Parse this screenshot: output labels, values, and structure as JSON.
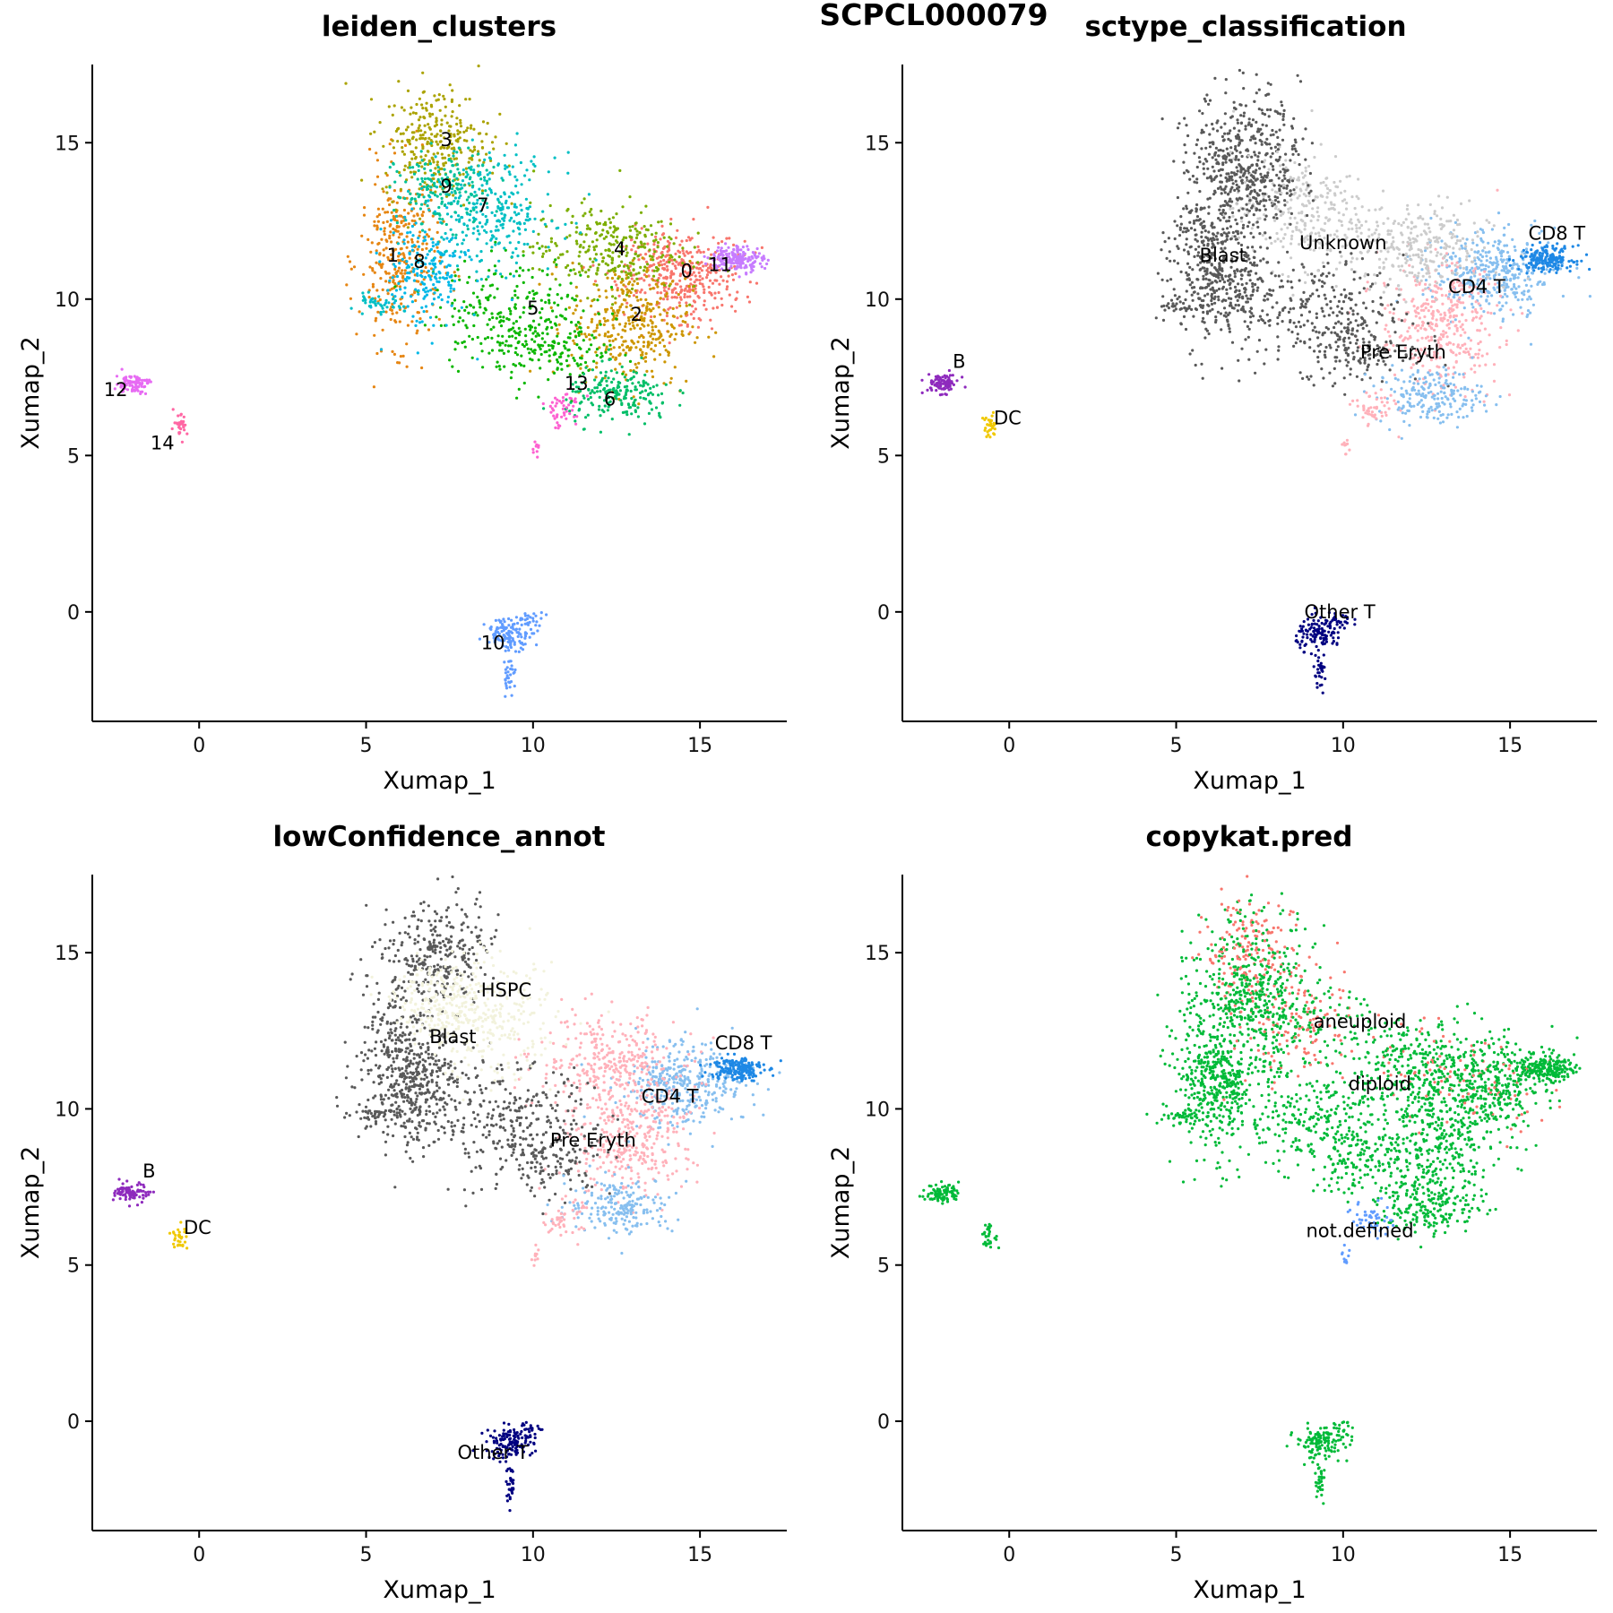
{
  "figure": {
    "title": "SCPCL000079"
  },
  "chart_data": [
    {
      "type": "scatter",
      "title": "leiden_clusters",
      "xlabel": "Xumap_1",
      "ylabel": "Xumap_2",
      "xlim": [
        -3.2,
        17.6
      ],
      "ylim": [
        -3.5,
        17.5
      ],
      "xticks": [
        0,
        5,
        10,
        15
      ],
      "yticks": [
        0,
        5,
        10,
        15
      ],
      "grid": false,
      "legend": "none",
      "groups": [
        {
          "label": "0",
          "color": "#F8766D",
          "label_x": 14.6,
          "label_y": 10.7
        },
        {
          "label": "1",
          "color": "#E68613",
          "label_x": 5.8,
          "label_y": 11.2
        },
        {
          "label": "2",
          "color": "#CD9600",
          "label_x": 13.1,
          "label_y": 9.3
        },
        {
          "label": "3",
          "color": "#ABA300",
          "label_x": 7.4,
          "label_y": 14.9
        },
        {
          "label": "4",
          "color": "#7CAE00",
          "label_x": 12.6,
          "label_y": 11.4
        },
        {
          "label": "5",
          "color": "#0CB702",
          "label_x": 10.0,
          "label_y": 9.5
        },
        {
          "label": "6",
          "color": "#00BE67",
          "label_x": 12.3,
          "label_y": 6.6
        },
        {
          "label": "7",
          "color": "#00BFC4",
          "label_x": 8.5,
          "label_y": 12.8
        },
        {
          "label": "8",
          "color": "#00B8E7",
          "label_x": 6.6,
          "label_y": 11.0
        },
        {
          "label": "9",
          "color": "#00C19A",
          "label_x": 7.4,
          "label_y": 13.4
        },
        {
          "label": "10",
          "color": "#619CFF",
          "label_x": 8.8,
          "label_y": -1.2
        },
        {
          "label": "11",
          "color": "#C77CFF",
          "label_x": 15.6,
          "label_y": 10.9
        },
        {
          "label": "12",
          "color": "#E76BF3",
          "label_x": -2.5,
          "label_y": 6.9
        },
        {
          "label": "13",
          "color": "#FD61D1",
          "label_x": 11.3,
          "label_y": 7.1
        },
        {
          "label": "14",
          "color": "#FF67A4",
          "label_x": -1.1,
          "label_y": 5.2
        }
      ]
    },
    {
      "type": "scatter",
      "title": "sctype_classification",
      "xlabel": "Xumap_1",
      "ylabel": "Xumap_2",
      "xlim": [
        -3.2,
        17.6
      ],
      "ylim": [
        -3.5,
        17.5
      ],
      "xticks": [
        0,
        5,
        10,
        15
      ],
      "yticks": [
        0,
        5,
        10,
        15
      ],
      "grid": false,
      "legend": "none",
      "groups": [
        {
          "label": "Blast",
          "color": "#595959",
          "label_x": 6.4,
          "label_y": 11.2
        },
        {
          "label": "Unknown",
          "color": "#CCCCCC",
          "label_x": 10.0,
          "label_y": 11.6
        },
        {
          "label": "CD8 T",
          "color": "#1E88E5",
          "label_x": 16.4,
          "label_y": 11.9
        },
        {
          "label": "CD4 T",
          "color": "#87BFEF",
          "label_x": 14.0,
          "label_y": 10.2
        },
        {
          "label": "Pre Eryth",
          "color": "#FFB1BA",
          "label_x": 11.8,
          "label_y": 8.1
        },
        {
          "label": "B",
          "color": "#8E2ABD",
          "label_x": -1.5,
          "label_y": 7.8
        },
        {
          "label": "DC",
          "color": "#F0C800",
          "label_x": -0.05,
          "label_y": 6.0
        },
        {
          "label": "Other T",
          "color": "#000080",
          "label_x": 9.9,
          "label_y": -0.2
        }
      ]
    },
    {
      "type": "scatter",
      "title": "lowConfidence_annot",
      "xlabel": "Xumap_1",
      "ylabel": "Xumap_2",
      "xlim": [
        -3.2,
        17.6
      ],
      "ylim": [
        -3.5,
        17.5
      ],
      "xticks": [
        0,
        5,
        10,
        15
      ],
      "yticks": [
        0,
        5,
        10,
        15
      ],
      "grid": false,
      "legend": "none",
      "groups": [
        {
          "label": "HSPC",
          "color": "#F2F2DC",
          "label_x": 9.2,
          "label_y": 13.6
        },
        {
          "label": "Blast",
          "color": "#595959",
          "label_x": 7.6,
          "label_y": 12.1
        },
        {
          "label": "CD8 T",
          "color": "#1E88E5",
          "label_x": 16.3,
          "label_y": 11.9
        },
        {
          "label": "CD4 T",
          "color": "#87BFEF",
          "label_x": 14.1,
          "label_y": 10.2
        },
        {
          "label": "Pre Eryth",
          "color": "#FFB1BA",
          "label_x": 11.8,
          "label_y": 8.8
        },
        {
          "label": "B",
          "color": "#8E2ABD",
          "label_x": -1.5,
          "label_y": 7.8
        },
        {
          "label": "DC",
          "color": "#F0C800",
          "label_x": -0.05,
          "label_y": 6.0
        },
        {
          "label": "Other T",
          "color": "#000080",
          "label_x": 8.8,
          "label_y": -1.2
        }
      ]
    },
    {
      "type": "scatter",
      "title": "copykat.pred",
      "xlabel": "Xumap_1",
      "ylabel": "Xumap_2",
      "xlim": [
        -3.2,
        17.6
      ],
      "ylim": [
        -3.5,
        17.5
      ],
      "xticks": [
        0,
        5,
        10,
        15
      ],
      "yticks": [
        0,
        5,
        10,
        15
      ],
      "grid": false,
      "legend": "none",
      "groups": [
        {
          "label": "aneuploid",
          "color": "#F8766D",
          "label_x": 10.5,
          "label_y": 12.6
        },
        {
          "label": "diploid",
          "color": "#00BA38",
          "label_x": 11.1,
          "label_y": 10.6
        },
        {
          "label": "not.defined",
          "color": "#619CFF",
          "label_x": 10.5,
          "label_y": 5.9
        }
      ]
    }
  ]
}
